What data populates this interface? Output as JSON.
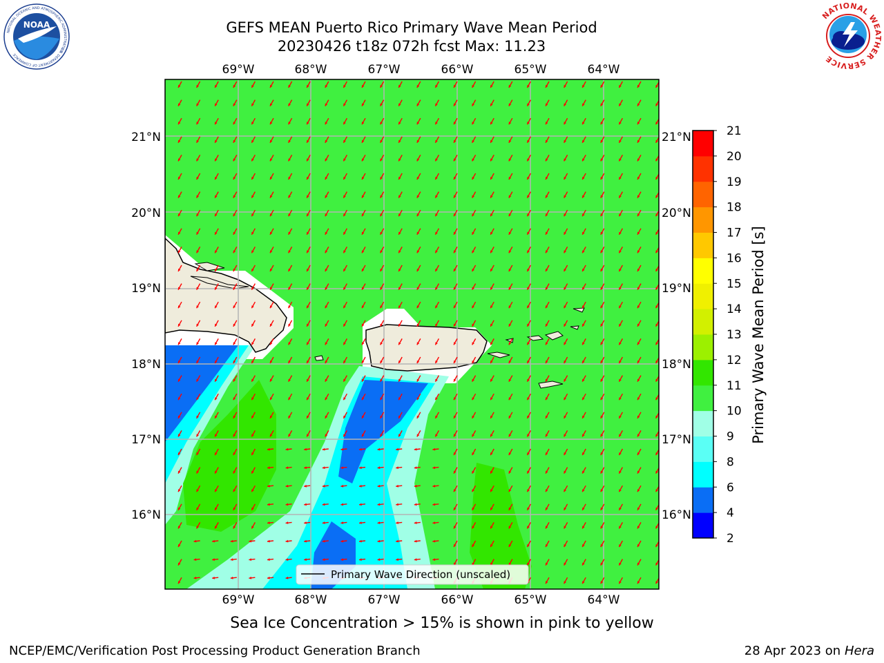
{
  "header": {
    "title_line1": "GEFS MEAN Puerto Rico Primary Wave Mean Period",
    "title_line2": "20230426 t18z 072h fcst   Max: 11.23"
  },
  "logos": {
    "noaa_text": "NOAA",
    "noaa_ring_text": "NATIONAL OCEANIC AND ATMOSPHERIC ADMINISTRATION",
    "noaa_ring_bottom": "U.S. DEPARTMENT OF COMMERCE",
    "nws_ring_text": "NATIONAL WEATHER SERVICE"
  },
  "map": {
    "lon_ticks": [
      "69°W",
      "68°W",
      "67°W",
      "66°W",
      "65°W",
      "64°W"
    ],
    "lat_ticks": [
      "21°N",
      "20°N",
      "19°N",
      "18°N",
      "17°N",
      "16°N"
    ],
    "legend_label": "Primary Wave Direction (unscaled)",
    "arrow_color": "#ff0000",
    "land_color": "#efecdc",
    "background_field_color": "#40f040"
  },
  "colorbar": {
    "label": "Primary Wave Mean Period [s]",
    "ticks": [
      "2",
      "4",
      "6",
      "8",
      "9",
      "10",
      "11",
      "12",
      "13",
      "14",
      "15",
      "16",
      "17",
      "18",
      "19",
      "20",
      "21"
    ],
    "colors": [
      "#0000ff",
      "#0a6ef5",
      "#00ffff",
      "#5afff5",
      "#a0ffe6",
      "#40f040",
      "#32e600",
      "#9cf000",
      "#d2f000",
      "#f0f000",
      "#ffff00",
      "#ffc800",
      "#ff9600",
      "#ff6400",
      "#ff3200",
      "#ff0000"
    ]
  },
  "note": "Sea Ice Concentration > 15% is shown in pink to yellow",
  "footer": {
    "left": "NCEP/EMC/Verification Post Processing Product Generation Branch",
    "right_date": "28 Apr 2023 on ",
    "right_host": "Hera"
  }
}
